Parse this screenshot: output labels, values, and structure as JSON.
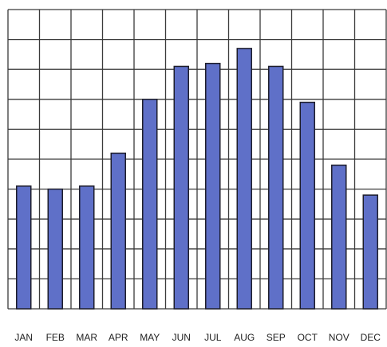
{
  "chart_data": {
    "type": "bar",
    "categories": [
      "JAN",
      "FEB",
      "MAR",
      "APR",
      "MAY",
      "JUN",
      "JUL",
      "AUG",
      "SEP",
      "OCT",
      "NOV",
      "DEC"
    ],
    "values": [
      4.1,
      4.0,
      4.1,
      5.2,
      7.0,
      8.1,
      8.2,
      8.7,
      8.1,
      6.9,
      4.8,
      3.8
    ],
    "color": "#5f70c8",
    "ylim": [
      0,
      10
    ],
    "yticks": [
      0,
      1,
      2,
      3,
      4,
      5,
      6,
      7,
      8,
      9,
      10
    ],
    "grid": true
  }
}
